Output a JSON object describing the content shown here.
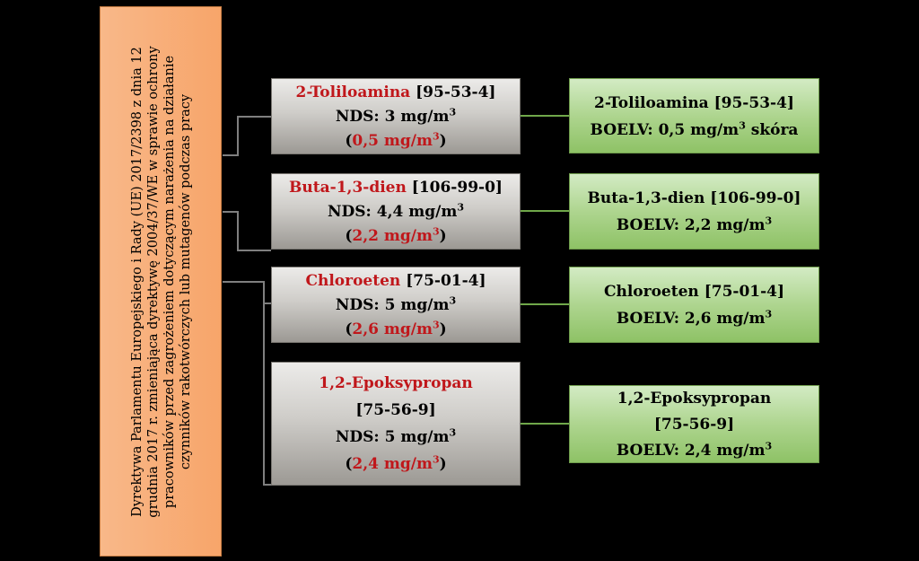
{
  "source": {
    "text": "Dyrektywa Parlamentu Europejskiego i Rady (UE) 2017/2398 z dnia 12 grudnia 2017 r. zmieniająca dyrektywę 2004/37/WE w sprawie ochrony pracowników przed zagrożeniem dotyczącym narażenia na działanie czynników rakotwórczych lub mutagenów podczas pracy"
  },
  "colors": {
    "background": "#000000",
    "source_fill": "#f7a56a",
    "highlight_red": "#c0171b",
    "grey_connector": "#7f7f7f",
    "green_connector": "#70a84a"
  },
  "substances": [
    {
      "name": "2-Toliloamina",
      "cas": "[95-53-4]",
      "nds_label": "NDS: 3 mg/m",
      "unit_exp": "3",
      "paren_open": "(",
      "new_value": "0,5 mg/m",
      "paren_close": ")",
      "eu_name_cas": "2-Toliloamina [95-53-4]",
      "boelv_label": "BOELV: 0,5 mg/m",
      "boelv_suffix": " skóra"
    },
    {
      "name": "Buta-1,3-dien",
      "cas": "[106-99-0]",
      "nds_label": "NDS: 4,4 mg/m",
      "unit_exp": "3",
      "paren_open": "(",
      "new_value": "2,2 mg/m",
      "paren_close": ")",
      "eu_name_cas": "Buta-1,3-dien [106-99-0]",
      "boelv_label": "BOELV: 2,2 mg/m",
      "boelv_suffix": ""
    },
    {
      "name": "Chloroeten",
      "cas": "[75-01-4]",
      "nds_label": "NDS: 5 mg/m",
      "unit_exp": "3",
      "paren_open": "(",
      "new_value": "2,6 mg/m",
      "paren_close": ")",
      "eu_name_cas": "Chloroeten [75-01-4]",
      "boelv_label": "BOELV: 2,6 mg/m",
      "boelv_suffix": ""
    },
    {
      "name": "1,2-Epoksypropan",
      "cas": "[75-56-9]",
      "nds_label": "NDS: 5 mg/m",
      "unit_exp": "3",
      "paren_open": "(",
      "new_value": "2,4 mg/m",
      "paren_close": ")",
      "eu_name": "1,2-Epoksypropan",
      "eu_cas": "[75-56-9]",
      "boelv_label": "BOELV: 2,4 mg/m",
      "boelv_suffix": ""
    }
  ]
}
